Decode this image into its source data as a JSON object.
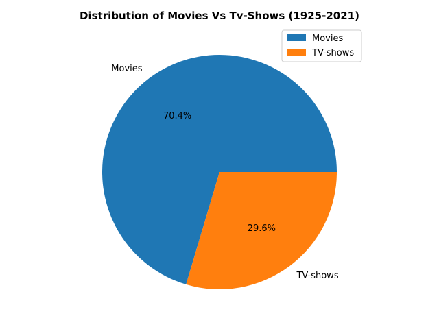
{
  "chart_data": {
    "type": "pie",
    "title": "Distribution of Movies Vs Tv-Shows (1925-2021)",
    "categories": [
      "Movies",
      "TV-shows"
    ],
    "values": [
      70.4,
      29.6
    ],
    "value_labels": [
      "70.4%",
      "29.6%"
    ],
    "colors": [
      "#1f77b4",
      "#ff7f0e"
    ],
    "start_angle_deg": 0,
    "direction": "counterclockwise",
    "legend": {
      "placement": "top-right",
      "entries": [
        "Movies",
        "TV-shows"
      ]
    }
  }
}
